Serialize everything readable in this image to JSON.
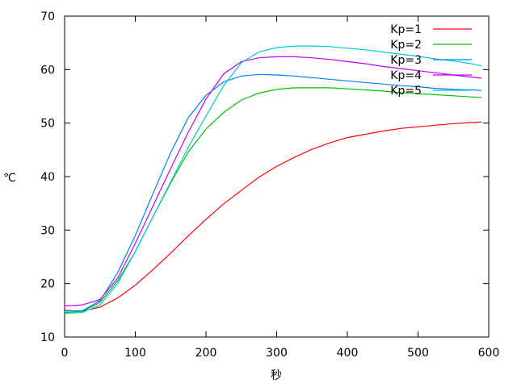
{
  "chart_data": {
    "type": "line",
    "xlabel": "秒",
    "ylabel": "℃",
    "xlim": [
      0,
      600
    ],
    "ylim": [
      10,
      70
    ],
    "xticks": [
      0,
      100,
      200,
      300,
      400,
      500,
      600
    ],
    "yticks": [
      10,
      20,
      30,
      40,
      50,
      60,
      70
    ],
    "grid": false,
    "legend_position": "top-right",
    "series": [
      {
        "name": "Kp=1",
        "color": "#ff0000",
        "x": [
          0,
          25,
          50,
          75,
          100,
          125,
          150,
          175,
          200,
          225,
          250,
          275,
          300,
          325,
          350,
          375,
          400,
          425,
          450,
          475,
          500,
          525,
          550,
          575,
          590
        ],
        "y": [
          15.0,
          14.8,
          15.6,
          17.3,
          19.7,
          22.6,
          25.7,
          28.9,
          32.0,
          34.9,
          37.4,
          39.9,
          41.9,
          43.6,
          45.1,
          46.3,
          47.3,
          47.9,
          48.5,
          49.0,
          49.3,
          49.6,
          49.9,
          50.1,
          50.2
        ]
      },
      {
        "name": "Kp=2",
        "color": "#00c000",
        "x": [
          0,
          25,
          50,
          75,
          100,
          125,
          150,
          175,
          200,
          225,
          250,
          275,
          300,
          325,
          350,
          375,
          400,
          425,
          450,
          475,
          500,
          525,
          550,
          575,
          590
        ],
        "y": [
          14.6,
          14.8,
          16.5,
          20.5,
          26.0,
          32.5,
          38.8,
          44.6,
          48.9,
          52.0,
          54.3,
          55.6,
          56.3,
          56.6,
          56.6,
          56.6,
          56.4,
          56.2,
          56.0,
          55.7,
          55.5,
          55.3,
          55.1,
          54.9,
          54.8
        ]
      },
      {
        "name": "Kp=3",
        "color": "#0080ff",
        "x": [
          0,
          25,
          50,
          75,
          100,
          125,
          150,
          175,
          200,
          225,
          250,
          275,
          300,
          325,
          350,
          375,
          400,
          425,
          450,
          475,
          500,
          525,
          550,
          575,
          590
        ],
        "y": [
          14.9,
          14.9,
          16.8,
          22.0,
          29.0,
          36.8,
          44.5,
          51.0,
          55.2,
          57.7,
          58.8,
          59.1,
          59.0,
          58.8,
          58.5,
          58.2,
          57.9,
          57.6,
          57.3,
          57.0,
          56.8,
          56.5,
          56.3,
          56.2,
          56.1
        ]
      },
      {
        "name": "Kp=4",
        "color": "#c000ff",
        "x": [
          0,
          25,
          50,
          75,
          100,
          125,
          150,
          175,
          200,
          225,
          250,
          275,
          300,
          325,
          350,
          375,
          400,
          425,
          450,
          475,
          500,
          525,
          550,
          575,
          590
        ],
        "y": [
          15.8,
          16.0,
          17.0,
          21.0,
          27.5,
          34.5,
          41.5,
          48.3,
          54.5,
          59.2,
          61.5,
          62.2,
          62.4,
          62.4,
          62.2,
          61.9,
          61.5,
          61.1,
          60.6,
          60.2,
          59.8,
          59.4,
          59.0,
          58.6,
          58.4
        ]
      },
      {
        "name": "Kp=5",
        "color": "#00c8d8",
        "x": [
          0,
          25,
          50,
          75,
          100,
          125,
          150,
          175,
          200,
          225,
          250,
          275,
          300,
          325,
          350,
          375,
          400,
          425,
          450,
          475,
          500,
          525,
          550,
          575,
          590
        ],
        "y": [
          14.4,
          14.6,
          16.0,
          20.0,
          26.0,
          32.5,
          39.0,
          45.5,
          51.3,
          57.0,
          61.3,
          63.3,
          64.1,
          64.4,
          64.4,
          64.3,
          64.0,
          63.7,
          63.3,
          62.9,
          62.5,
          62.0,
          61.6,
          61.1,
          60.7
        ]
      }
    ]
  }
}
